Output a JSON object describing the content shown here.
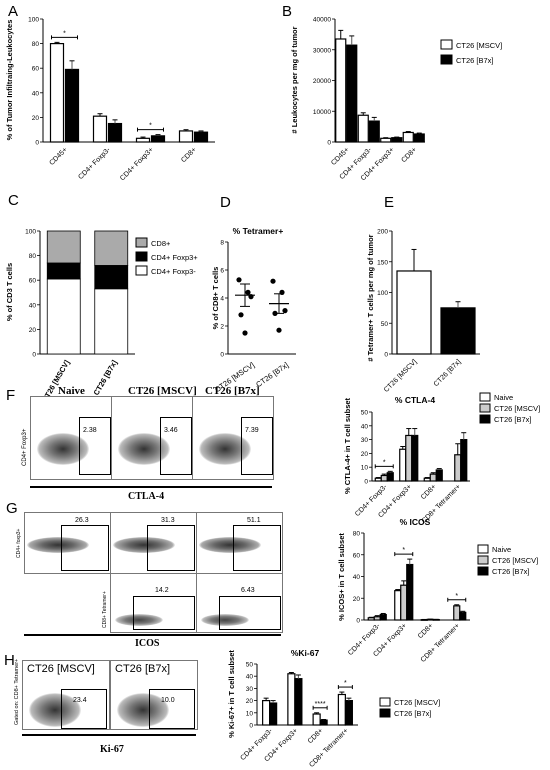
{
  "panel_letters": [
    "A",
    "B",
    "C",
    "D",
    "E",
    "F",
    "G",
    "H"
  ],
  "chart_data": [
    {
      "panel": "A",
      "type": "bar",
      "categories": [
        "CD45+",
        "CD4+ Foxp3-",
        "CD4+ Foxp3+",
        "CD8+"
      ],
      "ylabel": "% of Tumor Infiltraing-Leukocytes",
      "ylim": [
        0,
        100
      ],
      "yticks": [
        0,
        20,
        40,
        60,
        80,
        100
      ],
      "series": [
        {
          "values": [
            80,
            21,
            3,
            9
          ],
          "err": [
            1,
            2,
            1,
            1
          ],
          "color": "#ffffff"
        },
        {
          "values": [
            59,
            15,
            5,
            8
          ],
          "err": [
            7,
            3,
            1,
            1
          ],
          "color": "#000000"
        }
      ],
      "annotations": [
        {
          "cat": 0,
          "text": "*"
        },
        {
          "cat": 2,
          "text": "*"
        }
      ]
    },
    {
      "panel": "B",
      "type": "bar",
      "categories": [
        "CD45+",
        "CD4+ Foxp3-",
        "CD4+ Foxp3+",
        "CD8+"
      ],
      "ylabel": "# Leukocytes per mg of tumor",
      "ylim": [
        0,
        40000
      ],
      "yticks": [
        0,
        10000,
        20000,
        30000,
        40000
      ],
      "series": [
        {
          "name": "CT26 [MSCV]",
          "values": [
            33500,
            8700,
            1200,
            3100
          ],
          "err": [
            2800,
            800,
            200,
            300
          ],
          "color": "#ffffff"
        },
        {
          "name": "CT26 [B7x]",
          "values": [
            31500,
            6800,
            1400,
            2600
          ],
          "err": [
            3000,
            1200,
            200,
            300
          ],
          "color": "#000000"
        }
      ]
    },
    {
      "panel": "C",
      "type": "bar",
      "categories": [
        "CT26 [MSCV]",
        "CT26 [B7x]"
      ],
      "ylabel": "% of CD3 T cells",
      "ylim": [
        0,
        100
      ],
      "yticks": [
        0,
        20,
        40,
        60,
        80,
        100
      ],
      "series": [
        {
          "name": "CD4+ Foxp3-",
          "values": [
            61,
            53
          ],
          "color": "#ffffff"
        },
        {
          "name": "CD4+ Foxp3+",
          "values": [
            13,
            19
          ],
          "color": "#000000"
        },
        {
          "name": "CD8+",
          "values": [
            26,
            28
          ],
          "color": "#aaaaaa"
        }
      ]
    },
    {
      "panel": "D",
      "type": "scatter",
      "title": "% Tetramer+",
      "categories": [
        "CT26 [MSCV]",
        "CT26 [B7x]"
      ],
      "ylabel": "% of CD8+ T cells",
      "ylim": [
        0,
        8
      ],
      "yticks": [
        0,
        2,
        4,
        6,
        8
      ],
      "points": [
        [
          5.3,
          4.4,
          4.1,
          2.8,
          1.5
        ],
        [
          5.2,
          4.4,
          3.1,
          2.9,
          1.7
        ]
      ],
      "mean": [
        4.2,
        3.6
      ],
      "sem": [
        0.8,
        0.7
      ]
    },
    {
      "panel": "E",
      "type": "bar",
      "categories": [
        "CT26 [MSCV]",
        "CT26 [B7x]"
      ],
      "ylabel": "# Tetramer+ T cells per mg of tumor",
      "ylim": [
        0,
        200
      ],
      "yticks": [
        0,
        50,
        100,
        150,
        200
      ],
      "series": [
        {
          "values": [
            135,
            75
          ],
          "err": [
            35,
            10
          ],
          "colors": [
            "#ffffff",
            "#000000"
          ]
        }
      ]
    },
    {
      "panel": "F",
      "type": "bar",
      "title": "% CTLA-4",
      "categories": [
        "CD4+ Foxp3-",
        "CD4+ Foxp3+",
        "CD8+",
        "CD8+ Tetramer+"
      ],
      "ylabel": "% CTLA-4+ in T cell subset",
      "ylim": [
        0,
        50
      ],
      "yticks": [
        0,
        10,
        20,
        30,
        40,
        50
      ],
      "series": [
        {
          "name": "Naive",
          "values": [
            2,
            23,
            2,
            null
          ],
          "err": [
            0.5,
            2,
            0.5,
            0
          ],
          "color": "#ffffff"
        },
        {
          "name": "CT26 [MSCV]",
          "values": [
            4,
            33,
            5,
            19
          ],
          "err": [
            1,
            5,
            1,
            8
          ],
          "color": "#cccccc"
        },
        {
          "name": "CT26 [B7x]",
          "values": [
            6,
            33,
            8,
            30
          ],
          "err": [
            1,
            5,
            1,
            5
          ],
          "color": "#000000"
        }
      ],
      "annotations": [
        {
          "cat": 0,
          "text": "*"
        }
      ]
    },
    {
      "panel": "G",
      "type": "bar",
      "title": "% ICOS",
      "categories": [
        "CD4+ Foxp3-",
        "CD4+ Foxp3+",
        "CD8+",
        "CD8+ Tetramer+"
      ],
      "ylabel": "% ICOS+ in T cell subset",
      "ylim": [
        0,
        80
      ],
      "yticks": [
        0,
        20,
        40,
        60,
        80
      ],
      "series": [
        {
          "name": "Naive",
          "values": [
            2,
            27,
            0.3,
            null
          ],
          "err": [
            0.5,
            1,
            0.2,
            0
          ],
          "color": "#ffffff"
        },
        {
          "name": "CT26 [MSCV]",
          "values": [
            3,
            32,
            0.6,
            13
          ],
          "err": [
            1,
            4,
            0.2,
            1
          ],
          "color": "#cccccc"
        },
        {
          "name": "CT26 [B7x]",
          "values": [
            5,
            51,
            0.4,
            7
          ],
          "err": [
            1,
            5,
            0.2,
            1
          ],
          "color": "#000000"
        }
      ],
      "annotations": [
        {
          "cat": 1,
          "text": "*"
        },
        {
          "cat": 3,
          "text": "*"
        }
      ]
    },
    {
      "panel": "H",
      "type": "bar",
      "title": "%Ki-67",
      "categories": [
        "CD4+ Foxp3-",
        "CD4+ Foxp3+",
        "CD8+",
        "CD8+ Tetramer+"
      ],
      "ylabel": "% Ki-67+ in T cell subset",
      "ylim": [
        0,
        50
      ],
      "yticks": [
        0,
        10,
        20,
        30,
        40,
        50
      ],
      "series": [
        {
          "name": "CT26 [MSCV]",
          "values": [
            20,
            42,
            9,
            25
          ],
          "err": [
            2,
            1,
            1,
            2
          ],
          "color": "#ffffff"
        },
        {
          "name": "CT26 [B7x]",
          "values": [
            18,
            38,
            4,
            20
          ],
          "err": [
            2,
            3,
            0.5,
            2
          ],
          "color": "#000000"
        }
      ],
      "annotations": [
        {
          "cat": 2,
          "text": "****"
        },
        {
          "cat": 3,
          "text": "*"
        }
      ]
    }
  ],
  "flow_F": {
    "headers": [
      "Naive",
      "CT26 [MSCV]",
      "CT26 [B7x]"
    ],
    "percents": [
      "2.38",
      "3.46",
      "7.39"
    ],
    "ylabel": "CD4+ Foxp3+",
    "xlabel": "CTLA-4"
  },
  "flow_G": {
    "row1_percents": [
      "26.3",
      "31.3",
      "51.1"
    ],
    "row2_percents": [
      "14.2",
      "6.43"
    ],
    "row1_ylabel": "CD4+ foxp3+",
    "row2_ylabel": "CD8+ Tetramer+",
    "xlabel": "ICOS"
  },
  "flow_H": {
    "headers": [
      "CT26 [MSCV]",
      "CT26 [B7x]"
    ],
    "percents": [
      "23.4",
      "10.0"
    ],
    "ylabel": "Gated on: CD8+ Tetramer+",
    "xlabel": "Ki-67"
  }
}
